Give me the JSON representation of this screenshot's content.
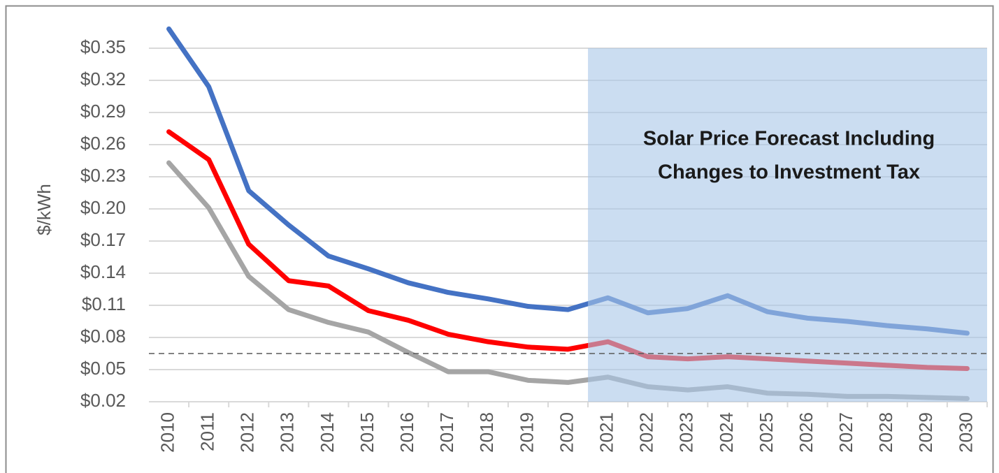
{
  "chart_data": {
    "type": "line",
    "y_label": "$/kWh",
    "annotation": [
      "Solar Price Forecast Including",
      "Changes to Investment Tax"
    ],
    "categories": [
      "2010",
      "2011",
      "2012",
      "2013",
      "2014",
      "2015",
      "2016",
      "2017",
      "2018",
      "2019",
      "2020",
      "2021",
      "2022",
      "2023",
      "2024",
      "2025",
      "2026",
      "2027",
      "2028",
      "2029",
      "2030"
    ],
    "series": [
      {
        "color": "#4472c4",
        "values": [
          0.368,
          0.314,
          0.217,
          0.185,
          0.156,
          0.144,
          0.131,
          0.122,
          0.116,
          0.109,
          0.106,
          0.117,
          0.103,
          0.107,
          0.119,
          0.104,
          0.098,
          0.095,
          0.091,
          0.088,
          0.084
        ]
      },
      {
        "color": "#ff0000",
        "values": [
          0.272,
          0.246,
          0.167,
          0.133,
          0.128,
          0.105,
          0.096,
          0.083,
          0.076,
          0.071,
          0.069,
          0.076,
          0.062,
          0.06,
          0.062,
          0.06,
          0.058,
          0.056,
          0.054,
          0.052,
          0.051
        ]
      },
      {
        "color": "#a5a5a5",
        "values": [
          0.243,
          0.201,
          0.137,
          0.106,
          0.094,
          0.085,
          0.066,
          0.048,
          0.048,
          0.04,
          0.038,
          0.043,
          0.034,
          0.031,
          0.034,
          0.028,
          0.027,
          0.025,
          0.025,
          0.024,
          0.023
        ]
      }
    ],
    "ylim": [
      0.02,
      0.37
    ],
    "yticks": [
      {
        "value": 0.02,
        "label": "$0.02"
      },
      {
        "value": 0.05,
        "label": "$0.05"
      },
      {
        "value": 0.08,
        "label": "$0.08"
      },
      {
        "value": 0.11,
        "label": "$0.11"
      },
      {
        "value": 0.14,
        "label": "$0.14"
      },
      {
        "value": 0.17,
        "label": "$0.17"
      },
      {
        "value": 0.2,
        "label": "$0.20"
      },
      {
        "value": 0.23,
        "label": "$0.23"
      },
      {
        "value": 0.26,
        "label": "$0.26"
      },
      {
        "value": 0.29,
        "label": "$0.29"
      },
      {
        "value": 0.32,
        "label": "$0.32"
      },
      {
        "value": 0.35,
        "label": "$0.35"
      }
    ],
    "grid": true,
    "reference_line": 0.065,
    "shade": {
      "from": "2021",
      "to": "2030",
      "y": [
        0.02,
        0.35
      ],
      "color": "#a9c6e8"
    }
  }
}
